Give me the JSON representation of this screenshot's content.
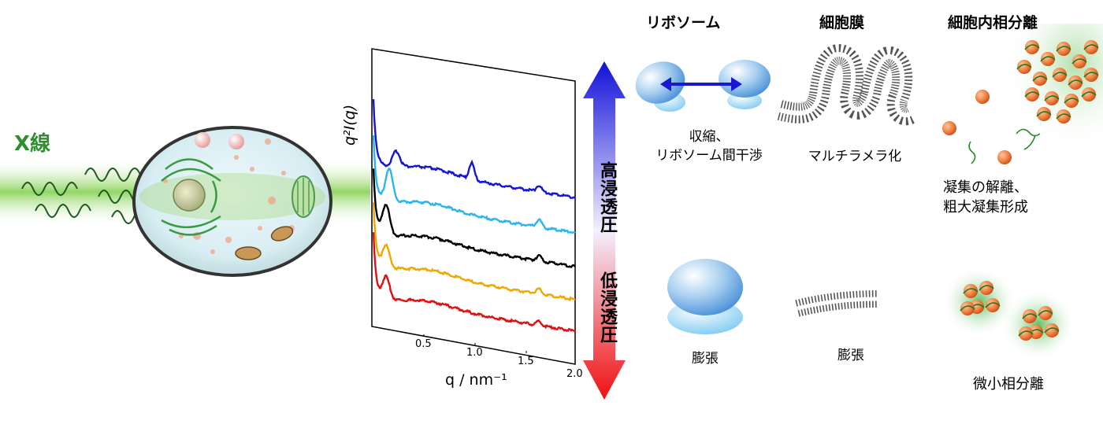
{
  "xray_label": "X線",
  "columns": {
    "ribosome": "リボソーム",
    "membrane": "細胞膜",
    "phase": "細胞内相分離"
  },
  "high_osmotic": {
    "ribosome": "収縮、\nリボソーム間干渉",
    "membrane": "マルチラメラ化",
    "phase": "凝集の解離、\n粗大凝集形成"
  },
  "low_osmotic": {
    "ribosome": "膨張",
    "membrane": "膨張",
    "phase": "微小相分離"
  },
  "arrow": {
    "top": "高浸透圧",
    "bottom": "低浸透圧"
  },
  "chart_data": {
    "type": "line",
    "xlabel": "q / nm⁻¹",
    "ylabel": "q²I(q)",
    "x_ticks": [
      "0.5",
      "1.0",
      "1.5",
      "2.0"
    ],
    "xlim": [
      0.05,
      2.0
    ],
    "series": [
      {
        "color": "#1515d6",
        "offset": 4,
        "peaks": [
          [
            0.27,
            0.6
          ],
          [
            1.0,
            0.65
          ],
          [
            1.65,
            0.25
          ]
        ]
      },
      {
        "color": "#2bb5f0",
        "offset": 3,
        "peaks": [
          [
            0.2,
            1.3
          ],
          [
            1.65,
            0.3
          ]
        ]
      },
      {
        "color": "#000000",
        "offset": 2,
        "peaks": [
          [
            0.17,
            1.2
          ],
          [
            1.65,
            0.2
          ]
        ]
      },
      {
        "color": "#f0a800",
        "offset": 1,
        "peaks": [
          [
            0.17,
            0.9
          ],
          [
            1.65,
            0.2
          ]
        ]
      },
      {
        "color": "#e01010",
        "offset": 0,
        "peaks": [
          [
            0.17,
            0.9
          ],
          [
            1.65,
            0.15
          ]
        ]
      }
    ]
  }
}
